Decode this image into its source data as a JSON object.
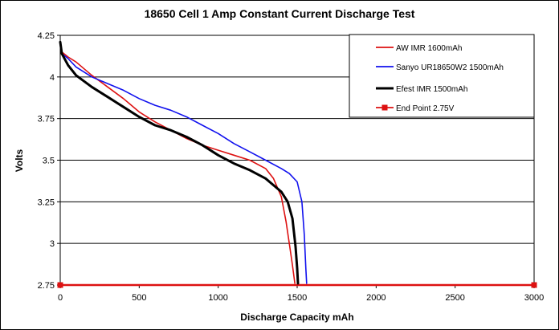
{
  "chart_data": {
    "type": "line",
    "title": "18650 Cell 1 Amp Constant Current Discharge Test",
    "xlabel": "Discharge Capacity mAh",
    "ylabel": "Volts",
    "xlim": [
      0,
      3000
    ],
    "ylim": [
      2.75,
      4.25
    ],
    "xticks": [
      0,
      500,
      1000,
      1500,
      2000,
      2500,
      3000
    ],
    "yticks": [
      2.75,
      3,
      3.25,
      3.5,
      3.75,
      4,
      4.25
    ],
    "ytick_labels": [
      "2.75",
      "3",
      "3.25",
      "3.5",
      "3.75",
      "4",
      "4.25"
    ],
    "grid": "horizontal",
    "legend_position": "top-right",
    "series": [
      {
        "name": "AW IMR 1600mAh",
        "color": "#dd1111",
        "marker": "none",
        "points": [
          [
            0,
            4.21
          ],
          [
            10,
            4.15
          ],
          [
            50,
            4.12
          ],
          [
            100,
            4.09
          ],
          [
            200,
            4.01
          ],
          [
            300,
            3.94
          ],
          [
            400,
            3.87
          ],
          [
            500,
            3.79
          ],
          [
            600,
            3.73
          ],
          [
            700,
            3.68
          ],
          [
            800,
            3.63
          ],
          [
            900,
            3.59
          ],
          [
            1000,
            3.56
          ],
          [
            1100,
            3.53
          ],
          [
            1200,
            3.5
          ],
          [
            1300,
            3.45
          ],
          [
            1350,
            3.39
          ],
          [
            1400,
            3.28
          ],
          [
            1430,
            3.13
          ],
          [
            1450,
            3.0
          ],
          [
            1470,
            2.87
          ],
          [
            1485,
            2.76
          ]
        ]
      },
      {
        "name": "Sanyo UR18650W2 1500mAh",
        "color": "#1111ee",
        "marker": "none",
        "points": [
          [
            0,
            4.21
          ],
          [
            10,
            4.14
          ],
          [
            50,
            4.11
          ],
          [
            100,
            4.06
          ],
          [
            200,
            4.0
          ],
          [
            300,
            3.96
          ],
          [
            400,
            3.92
          ],
          [
            500,
            3.87
          ],
          [
            600,
            3.83
          ],
          [
            700,
            3.8
          ],
          [
            800,
            3.76
          ],
          [
            900,
            3.71
          ],
          [
            1000,
            3.66
          ],
          [
            1100,
            3.6
          ],
          [
            1200,
            3.55
          ],
          [
            1300,
            3.5
          ],
          [
            1400,
            3.45
          ],
          [
            1450,
            3.42
          ],
          [
            1500,
            3.37
          ],
          [
            1530,
            3.25
          ],
          [
            1545,
            3.05
          ],
          [
            1555,
            2.85
          ],
          [
            1560,
            2.76
          ]
        ]
      },
      {
        "name": "Efest IMR 1500mAh",
        "color": "#000000",
        "marker": "none",
        "points": [
          [
            0,
            4.21
          ],
          [
            10,
            4.14
          ],
          [
            50,
            4.07
          ],
          [
            100,
            4.01
          ],
          [
            200,
            3.94
          ],
          [
            300,
            3.88
          ],
          [
            400,
            3.82
          ],
          [
            500,
            3.76
          ],
          [
            600,
            3.71
          ],
          [
            700,
            3.68
          ],
          [
            800,
            3.64
          ],
          [
            900,
            3.59
          ],
          [
            1000,
            3.53
          ],
          [
            1100,
            3.48
          ],
          [
            1200,
            3.44
          ],
          [
            1300,
            3.39
          ],
          [
            1350,
            3.35
          ],
          [
            1400,
            3.31
          ],
          [
            1440,
            3.25
          ],
          [
            1470,
            3.15
          ],
          [
            1490,
            2.98
          ],
          [
            1500,
            2.85
          ],
          [
            1505,
            2.76
          ]
        ]
      },
      {
        "name": "End Point 2.75V",
        "color": "#dd1111",
        "marker": "square",
        "points": [
          [
            0,
            2.75
          ],
          [
            3000,
            2.75
          ]
        ]
      }
    ]
  }
}
